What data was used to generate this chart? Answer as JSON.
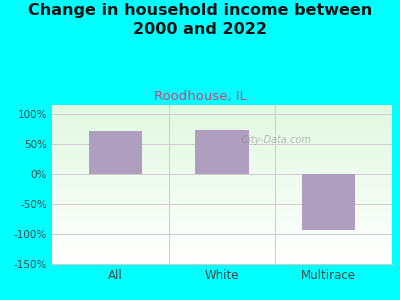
{
  "title": "Change in household income between\n2000 and 2022",
  "subtitle": "Roodhouse, IL",
  "categories": [
    "All",
    "White",
    "Multirace"
  ],
  "values": [
    72,
    74,
    -93
  ],
  "bar_color": "#b09ec0",
  "title_fontsize": 11.5,
  "subtitle_fontsize": 9.5,
  "subtitle_color": "#cc4477",
  "title_color": "#111111",
  "background_outer": "#00ffff",
  "ylim": [
    -150,
    115
  ],
  "yticks": [
    -150,
    -100,
    -50,
    0,
    50,
    100
  ],
  "ytick_labels": [
    "-150%",
    "-100%",
    "-50%",
    "0%",
    "50%",
    "100%"
  ],
  "grid_color": "#cccccc",
  "axis_label_color": "#444444",
  "watermark": "  City-Data.com",
  "bar_width": 0.5
}
